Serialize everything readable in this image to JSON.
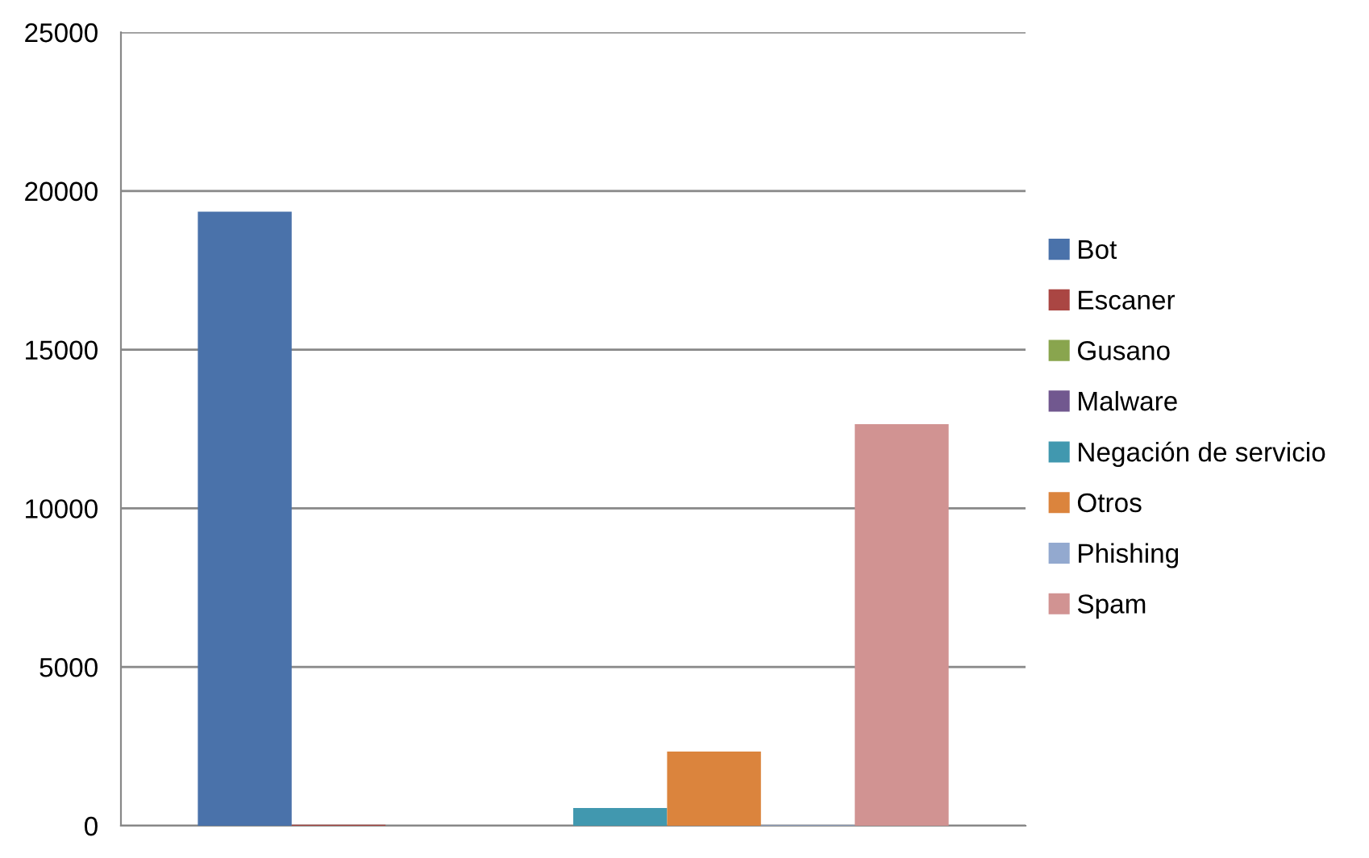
{
  "chart_data": {
    "type": "bar",
    "categories": [
      null
    ],
    "series": [
      {
        "name": "Bot",
        "color": "#4a72aa",
        "values": [
          19350
        ]
      },
      {
        "name": "Escaner",
        "color": "#aa4643",
        "values": [
          30
        ]
      },
      {
        "name": "Gusano",
        "color": "#89a54e",
        "values": [
          null
        ]
      },
      {
        "name": "Malware",
        "color": "#71588f",
        "values": [
          null
        ]
      },
      {
        "name": "Negación de servicio",
        "color": "#4198af",
        "values": [
          560
        ]
      },
      {
        "name": "Otros",
        "color": "#db843d",
        "values": [
          2340
        ]
      },
      {
        "name": "Phishing",
        "color": "#93a9cf",
        "values": [
          20
        ]
      },
      {
        "name": "Spam",
        "color": "#d19392",
        "values": [
          12650
        ]
      }
    ],
    "ylim": [
      0,
      25000
    ],
    "yticks": [
      0,
      5000,
      10000,
      15000,
      20000,
      25000
    ],
    "grid": "y",
    "legend": "right"
  }
}
